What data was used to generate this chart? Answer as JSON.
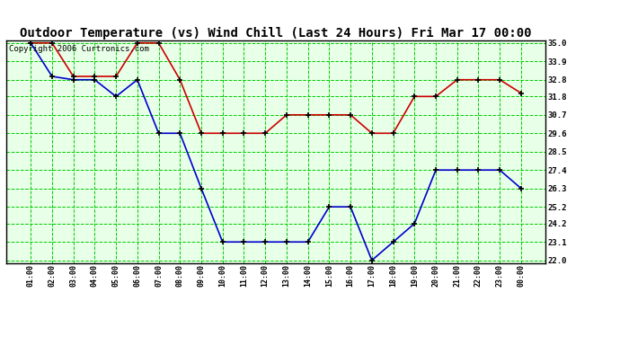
{
  "title": "Outdoor Temperature (vs) Wind Chill (Last 24 Hours) Fri Mar 17 00:00",
  "copyright": "Copyright 2006 Curtronics.com",
  "x_labels": [
    "01:00",
    "02:00",
    "03:00",
    "04:00",
    "05:00",
    "06:00",
    "07:00",
    "08:00",
    "09:00",
    "10:00",
    "11:00",
    "12:00",
    "13:00",
    "14:00",
    "15:00",
    "16:00",
    "17:00",
    "18:00",
    "19:00",
    "20:00",
    "21:00",
    "22:00",
    "23:00",
    "00:00"
  ],
  "temp_red": [
    35.0,
    35.0,
    33.0,
    33.0,
    33.0,
    35.0,
    35.0,
    32.8,
    29.6,
    29.6,
    29.6,
    29.6,
    30.7,
    30.7,
    30.7,
    30.7,
    29.6,
    29.6,
    31.8,
    31.8,
    32.8,
    32.8,
    32.8,
    32.0
  ],
  "wind_blue": [
    35.0,
    33.0,
    32.8,
    32.8,
    31.8,
    32.8,
    29.6,
    29.6,
    26.3,
    23.1,
    23.1,
    23.1,
    23.1,
    23.1,
    25.2,
    25.2,
    22.0,
    23.1,
    24.2,
    27.4,
    27.4,
    27.4,
    27.4,
    26.3
  ],
  "ylim_min": 22.0,
  "ylim_max": 35.0,
  "yticks": [
    22.0,
    23.1,
    24.2,
    25.2,
    26.3,
    27.4,
    28.5,
    29.6,
    30.7,
    31.8,
    32.8,
    33.9,
    35.0
  ],
  "bg_color": "#e8ffe8",
  "grid_color": "#00cc00",
  "red_color": "#cc0000",
  "blue_color": "#0000cc",
  "title_fontsize": 10,
  "copyright_fontsize": 6.5
}
